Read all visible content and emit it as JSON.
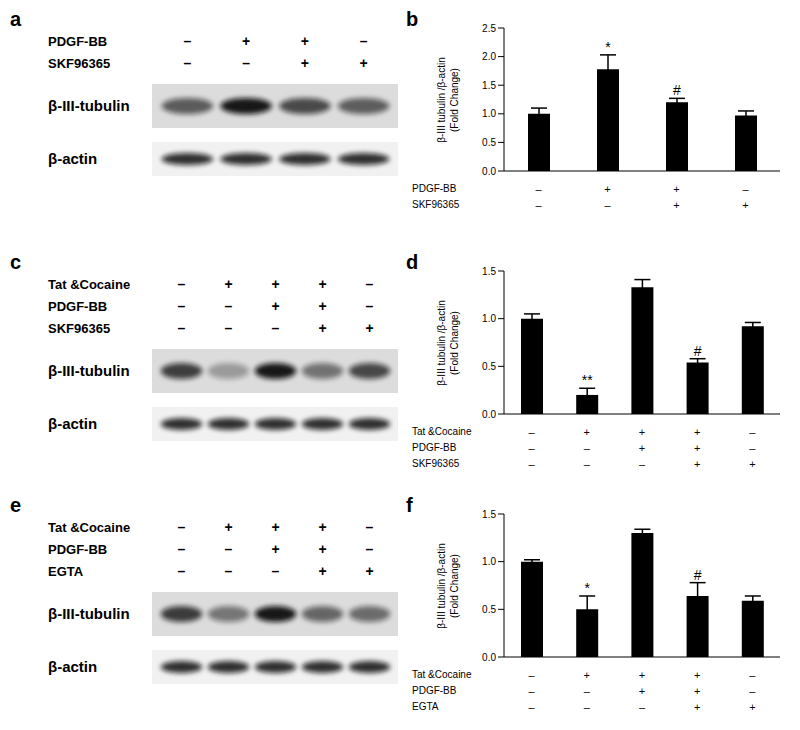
{
  "chart_data": [
    {
      "type": "bar",
      "panel": "b",
      "ylabel": "β-III tubulin /β-actin\n(Fold Change)",
      "categories": [
        null,
        null,
        null,
        null
      ],
      "values": [
        1.0,
        1.78,
        1.2,
        0.97
      ],
      "errors": [
        0.1,
        0.25,
        0.07,
        0.08
      ],
      "annotations": [
        null,
        "*",
        "#",
        null
      ],
      "treatments": [
        {
          "name": "PDGF-BB",
          "values": [
            "–",
            "+",
            "+",
            "–"
          ]
        },
        {
          "name": "SKF96365",
          "values": [
            "–",
            "–",
            "+",
            "+"
          ]
        }
      ],
      "color": "#000000",
      "ylim": [
        0,
        2.5
      ],
      "yticks": [
        {
          "value": 0,
          "label": "0.0"
        },
        {
          "value": 0.5,
          "label": "0.5"
        },
        {
          "value": 1,
          "label": "1.0"
        },
        {
          "value": 1.5,
          "label": "1.5"
        },
        {
          "value": 2,
          "label": "2.0"
        },
        {
          "value": 2.5,
          "label": "2.5"
        }
      ],
      "grid": false
    },
    {
      "type": "bar",
      "panel": "d",
      "ylabel": "β-III tubulin /β-actin\n(Fold Change)",
      "categories": [
        null,
        null,
        null,
        null,
        null
      ],
      "values": [
        1.0,
        0.2,
        1.33,
        0.54,
        0.92
      ],
      "errors": [
        0.05,
        0.07,
        0.08,
        0.04,
        0.04
      ],
      "annotations": [
        null,
        "**",
        null,
        "#",
        null
      ],
      "treatments": [
        {
          "name": "Tat &Cocaine",
          "values": [
            "–",
            "+",
            "+",
            "+",
            "–"
          ]
        },
        {
          "name": "PDGF-BB",
          "values": [
            "–",
            "–",
            "+",
            "+",
            "–"
          ]
        },
        {
          "name": "SKF96365",
          "values": [
            "–",
            "–",
            "–",
            "+",
            "+"
          ]
        }
      ],
      "color": "#000000",
      "ylim": [
        0,
        1.5
      ],
      "yticks": [
        {
          "value": 0,
          "label": "0.0"
        },
        {
          "value": 0.5,
          "label": "0.5"
        },
        {
          "value": 1,
          "label": "1.0"
        },
        {
          "value": 1.5,
          "label": "1.5"
        }
      ],
      "grid": false
    },
    {
      "type": "bar",
      "panel": "f",
      "ylabel": "β-III tubulin /β-actin\n(Fold Change)",
      "categories": [
        null,
        null,
        null,
        null,
        null
      ],
      "values": [
        1.0,
        0.5,
        1.3,
        0.64,
        0.59
      ],
      "errors": [
        0.02,
        0.14,
        0.04,
        0.14,
        0.05
      ],
      "annotations": [
        null,
        "*",
        null,
        "#",
        null
      ],
      "treatments": [
        {
          "name": "Tat &Cocaine",
          "values": [
            "–",
            "+",
            "+",
            "+",
            "–"
          ]
        },
        {
          "name": "PDGF-BB",
          "values": [
            "–",
            "–",
            "+",
            "+",
            "–"
          ]
        },
        {
          "name": "EGTA",
          "values": [
            "–",
            "–",
            "–",
            "+",
            "+"
          ]
        }
      ],
      "color": "#000000",
      "ylim": [
        0,
        1.5
      ],
      "yticks": [
        {
          "value": 0,
          "label": "0.0"
        },
        {
          "value": 0.5,
          "label": "0.5"
        },
        {
          "value": 1,
          "label": "1.0"
        },
        {
          "value": 1.5,
          "label": "1.5"
        }
      ],
      "grid": false
    }
  ],
  "blots": [
    {
      "panel": "a",
      "treatments": [
        {
          "name": "PDGF-BB",
          "values": [
            "–",
            "+",
            "+",
            "–"
          ]
        },
        {
          "name": "SKF96365",
          "values": [
            "–",
            "–",
            "+",
            "+"
          ]
        }
      ],
      "bands": [
        "β-III-tubulin",
        "β-actin"
      ]
    },
    {
      "panel": "c",
      "treatments": [
        {
          "name": "Tat &Cocaine",
          "values": [
            "–",
            "+",
            "+",
            "+",
            "–"
          ]
        },
        {
          "name": "PDGF-BB",
          "values": [
            "–",
            "–",
            "+",
            "+",
            "–"
          ]
        },
        {
          "name": "SKF96365",
          "values": [
            "–",
            "–",
            "–",
            "+",
            "+"
          ]
        }
      ],
      "bands": [
        "β-III-tubulin",
        "β-actin"
      ]
    },
    {
      "panel": "e",
      "treatments": [
        {
          "name": "Tat &Cocaine",
          "values": [
            "–",
            "+",
            "+",
            "+",
            "–"
          ]
        },
        {
          "name": "PDGF-BB",
          "values": [
            "–",
            "–",
            "+",
            "+",
            "–"
          ]
        },
        {
          "name": "EGTA",
          "values": [
            "–",
            "–",
            "–",
            "+",
            "+"
          ]
        }
      ],
      "bands": [
        "β-III-tubulin",
        "β-actin"
      ]
    }
  ]
}
